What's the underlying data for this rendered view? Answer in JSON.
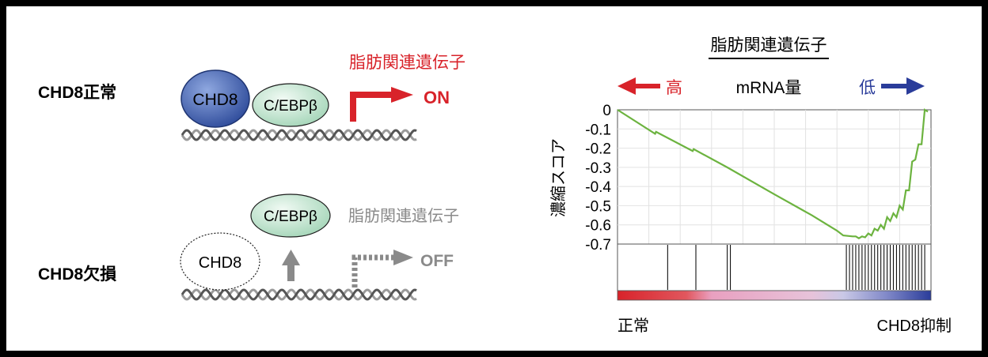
{
  "left": {
    "normal": {
      "row_label": "CHD8正常",
      "chd8_label": "CHD8",
      "cebp_label": "C/EBPβ",
      "gene_label": "脂肪関連遺伝子",
      "status": "ON"
    },
    "deficient": {
      "row_label": "CHD8欠損",
      "chd8_label": "CHD8",
      "cebp_label": "C/EBPβ",
      "gene_label": "脂肪関連遺伝子",
      "status": "OFF"
    }
  },
  "right": {
    "title": "脂肪関連遺伝子",
    "mrna_high": "高",
    "mrna_label": "mRNA量",
    "mrna_low": "低",
    "x_left": "正常",
    "x_right": "CHD8抑制",
    "colors": {
      "high": "#d8232a",
      "low": "#2a3c9a",
      "curve": "#6cb33f"
    },
    "chart_data": {
      "type": "line",
      "ylabel": "濃縮スコア",
      "ylim": [
        -0.7,
        0
      ],
      "yticks": [
        "0",
        "-0.1",
        "-0.2",
        "-0.3",
        "-0.4",
        "-0.5",
        "-0.6",
        "-0.7"
      ],
      "xlim": [
        0,
        100
      ],
      "series": [
        {
          "points": [
            [
              0,
              0
            ],
            [
              12,
              -0.125
            ],
            [
              12.3,
              -0.115
            ],
            [
              24,
              -0.215
            ],
            [
              24.3,
              -0.205
            ],
            [
              35,
              -0.3
            ],
            [
              50,
              -0.44
            ],
            [
              62,
              -0.55
            ],
            [
              70,
              -0.63
            ],
            [
              72,
              -0.655
            ],
            [
              75,
              -0.66
            ],
            [
              76,
              -0.66
            ],
            [
              77,
              -0.67
            ],
            [
              78,
              -0.66
            ],
            [
              79,
              -0.665
            ],
            [
              80,
              -0.645
            ],
            [
              81,
              -0.655
            ],
            [
              82,
              -0.62
            ],
            [
              83,
              -0.63
            ],
            [
              84,
              -0.6
            ],
            [
              85,
              -0.62
            ],
            [
              86,
              -0.56
            ],
            [
              87,
              -0.58
            ],
            [
              88,
              -0.54
            ],
            [
              89,
              -0.56
            ],
            [
              90,
              -0.5
            ],
            [
              91,
              -0.52
            ],
            [
              92,
              -0.42
            ],
            [
              93,
              -0.42
            ],
            [
              94,
              -0.27
            ],
            [
              95,
              -0.26
            ],
            [
              96,
              -0.18
            ],
            [
              97,
              -0.18
            ],
            [
              98,
              -0.0
            ],
            [
              99,
              -0.01
            ]
          ]
        }
      ],
      "gene_hits": [
        16,
        25,
        35,
        36,
        73,
        74,
        75,
        76,
        77,
        78,
        79,
        80,
        81,
        82,
        83,
        84,
        85,
        86,
        87,
        88,
        89,
        90,
        91,
        92,
        93,
        94,
        95,
        96,
        97,
        98
      ]
    }
  }
}
